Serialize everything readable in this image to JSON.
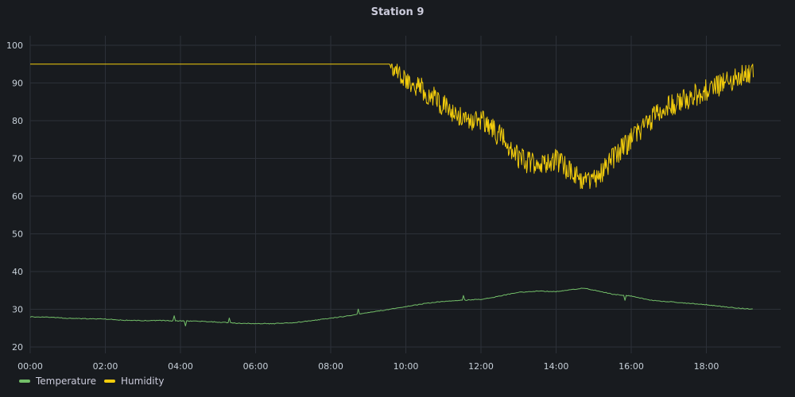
{
  "panel": {
    "title": "Station 9"
  },
  "colors": {
    "background": "#181b1f",
    "grid": "#2c3038",
    "text": "#ccccdc",
    "temperature": "#73bf69",
    "humidity": "#f2cc0c"
  },
  "legend": {
    "items": [
      {
        "label": "Temperature",
        "color": "#73bf69"
      },
      {
        "label": "Humidity",
        "color": "#f2cc0c"
      }
    ],
    "placement": "bottom-left"
  },
  "chart_data": {
    "type": "line",
    "title": "Station 9",
    "xlabel": "",
    "ylabel": "",
    "grid": true,
    "xlim": [
      "00:00",
      "19:45"
    ],
    "ylim": [
      18,
      103
    ],
    "x_ticks": [
      "00:00",
      "02:00",
      "04:00",
      "06:00",
      "08:00",
      "10:00",
      "12:00",
      "14:00",
      "16:00",
      "18:00"
    ],
    "y_ticks": [
      20,
      30,
      40,
      50,
      60,
      70,
      80,
      90,
      100
    ],
    "series": [
      {
        "name": "Temperature",
        "color": "#73bf69",
        "points": [
          [
            "00:00",
            28.0
          ],
          [
            "00:30",
            27.9
          ],
          [
            "01:00",
            27.6
          ],
          [
            "01:30",
            27.5
          ],
          [
            "02:00",
            27.4
          ],
          [
            "02:30",
            27.1
          ],
          [
            "03:00",
            27.0
          ],
          [
            "03:30",
            27.0
          ],
          [
            "04:00",
            26.9
          ],
          [
            "04:30",
            26.8
          ],
          [
            "05:00",
            26.6
          ],
          [
            "05:30",
            26.3
          ],
          [
            "06:00",
            26.2
          ],
          [
            "06:30",
            26.2
          ],
          [
            "07:00",
            26.4
          ],
          [
            "07:30",
            27.0
          ],
          [
            "08:00",
            27.6
          ],
          [
            "08:30",
            28.3
          ],
          [
            "09:00",
            29.1
          ],
          [
            "09:30",
            29.9
          ],
          [
            "10:00",
            30.7
          ],
          [
            "10:30",
            31.5
          ],
          [
            "11:00",
            32.1
          ],
          [
            "11:30",
            32.4
          ],
          [
            "12:00",
            32.6
          ],
          [
            "12:30",
            33.5
          ],
          [
            "13:00",
            34.5
          ],
          [
            "13:30",
            34.8
          ],
          [
            "14:00",
            34.7
          ],
          [
            "14:30",
            35.3
          ],
          [
            "14:45",
            35.6
          ],
          [
            "15:00",
            35.1
          ],
          [
            "15:30",
            34.0
          ],
          [
            "16:00",
            33.5
          ],
          [
            "16:30",
            32.4
          ],
          [
            "17:00",
            32.0
          ],
          [
            "17:30",
            31.6
          ],
          [
            "18:00",
            31.2
          ],
          [
            "18:30",
            30.6
          ],
          [
            "19:00",
            30.2
          ],
          [
            "19:15",
            30.0
          ]
        ],
        "noise": 0.2
      },
      {
        "name": "Humidity",
        "color": "#f2cc0c",
        "points": [
          [
            "00:00",
            95
          ],
          [
            "09:35",
            95
          ],
          [
            "09:45",
            93
          ],
          [
            "10:00",
            91
          ],
          [
            "10:30",
            88
          ],
          [
            "11:00",
            84
          ],
          [
            "11:30",
            81
          ],
          [
            "12:00",
            80
          ],
          [
            "12:30",
            76
          ],
          [
            "13:00",
            70
          ],
          [
            "13:30",
            68
          ],
          [
            "14:00",
            70
          ],
          [
            "14:30",
            65
          ],
          [
            "15:00",
            64
          ],
          [
            "15:30",
            70
          ],
          [
            "16:00",
            75
          ],
          [
            "16:30",
            80
          ],
          [
            "17:00",
            84
          ],
          [
            "17:30",
            86
          ],
          [
            "18:00",
            88
          ],
          [
            "18:30",
            90
          ],
          [
            "19:00",
            92
          ],
          [
            "19:15",
            93
          ]
        ],
        "noise": 6,
        "noise_start": "09:35",
        "max": 95,
        "min": 62
      }
    ]
  }
}
